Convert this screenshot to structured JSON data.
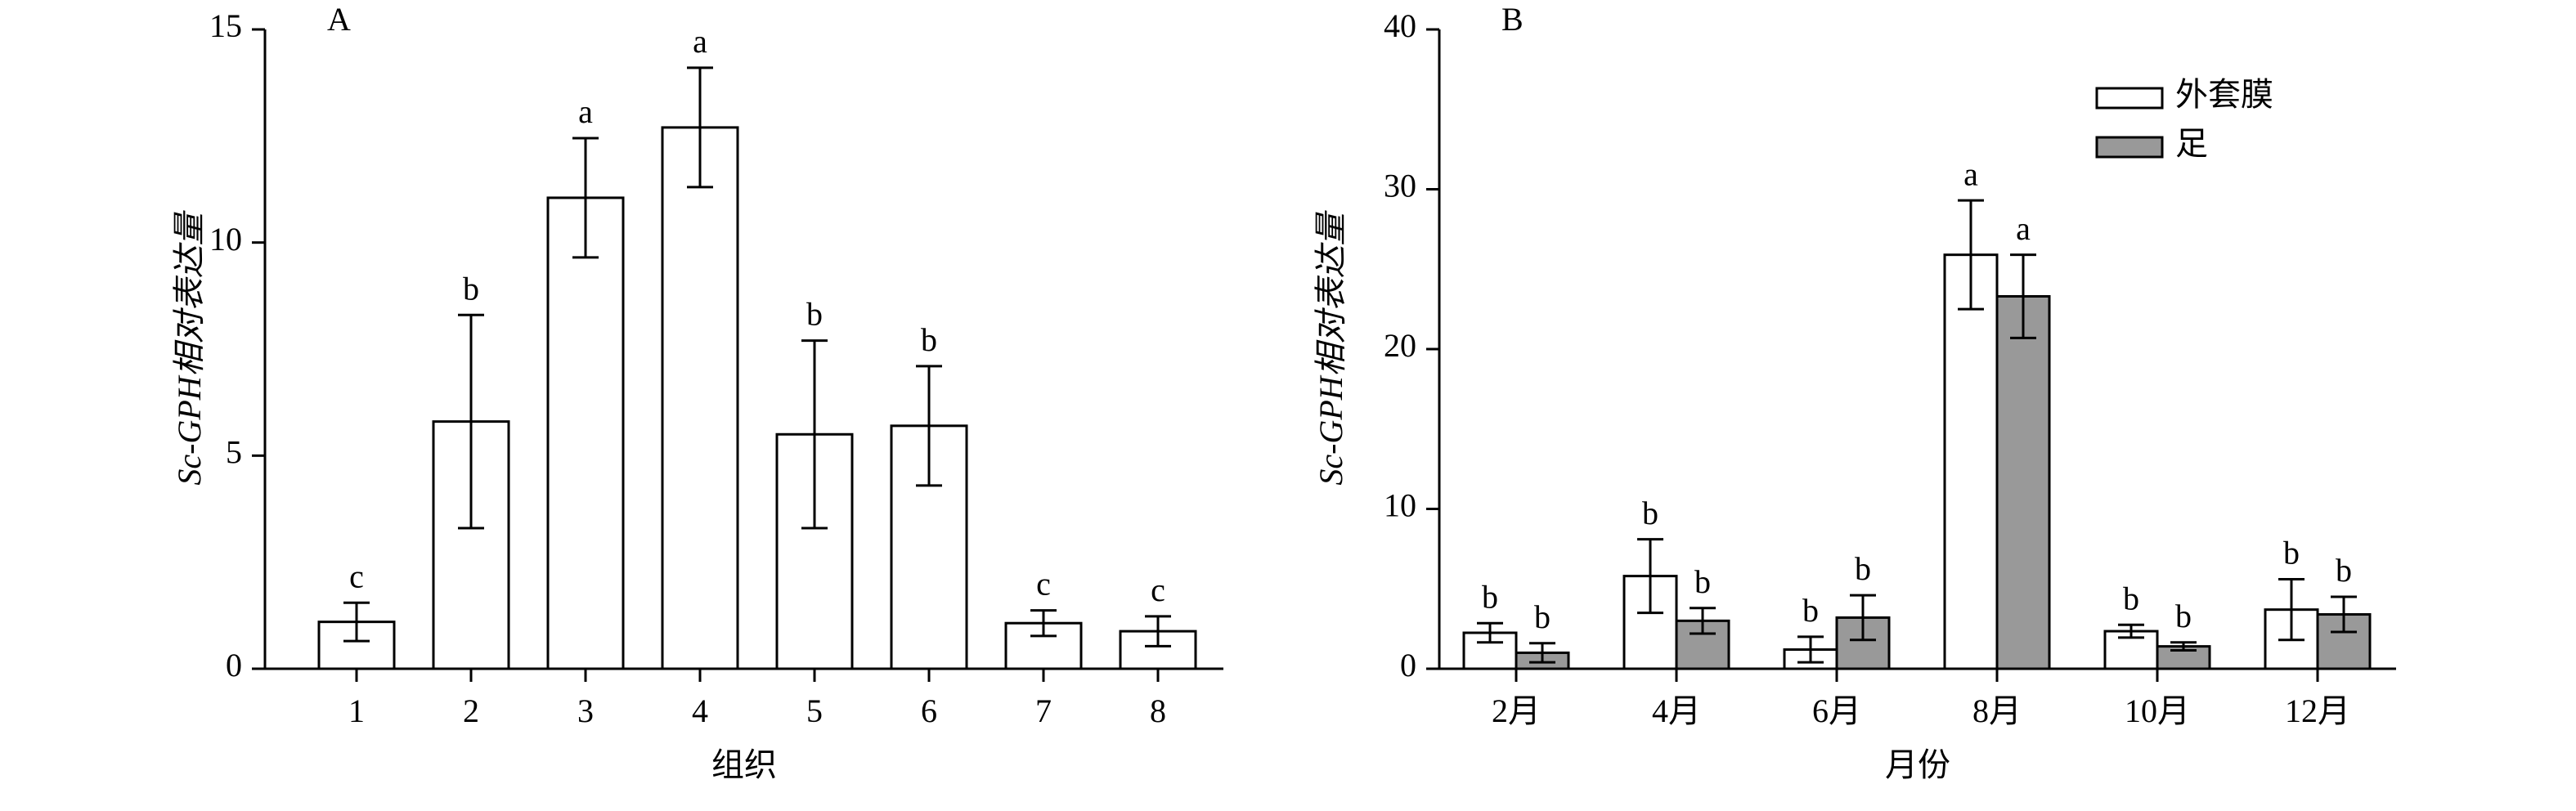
{
  "chart_data": [
    {
      "type": "bar",
      "title": "A",
      "xlabel": "组织",
      "ylabel": "Sc-GPH相对表达量",
      "categories": [
        "1",
        "2",
        "3",
        "4",
        "5",
        "6",
        "7",
        "8"
      ],
      "series": [
        {
          "color": "#ffffff",
          "values": [
            1.1,
            5.8,
            11.05,
            12.7,
            5.5,
            5.7,
            1.07,
            0.88
          ],
          "errors": [
            0.45,
            2.5,
            1.4,
            1.4,
            2.2,
            1.4,
            0.3,
            0.35
          ],
          "letters": [
            "c",
            "b",
            "a",
            "a",
            "b",
            "b",
            "c",
            "c"
          ]
        }
      ],
      "ylim": [
        0,
        15
      ],
      "yticks": [
        0,
        5,
        10,
        15
      ]
    },
    {
      "type": "bar",
      "title": "B",
      "xlabel": "月份",
      "ylabel": "Sc-GPH相对表达量",
      "categories": [
        "2月",
        "4月",
        "6月",
        "8月",
        "10月",
        "12月"
      ],
      "series": [
        {
          "name": "外套膜",
          "color": "#ffffff",
          "values": [
            2.25,
            5.8,
            1.2,
            25.9,
            2.35,
            3.7
          ],
          "errors": [
            0.6,
            2.3,
            0.8,
            3.4,
            0.4,
            1.9
          ],
          "letters": [
            "b",
            "b",
            "b",
            "a",
            "b",
            "b"
          ]
        },
        {
          "name": "足",
          "color": "#999999",
          "values": [
            1.0,
            3.0,
            3.2,
            23.3,
            1.4,
            3.4
          ],
          "errors": [
            0.6,
            0.8,
            1.4,
            2.6,
            0.25,
            1.1
          ],
          "letters": [
            "b",
            "b",
            "b",
            "a",
            "b",
            "b"
          ]
        }
      ],
      "ylim": [
        0,
        40
      ],
      "yticks": [
        0,
        10,
        20,
        30,
        40
      ],
      "legend": "upper right"
    }
  ]
}
